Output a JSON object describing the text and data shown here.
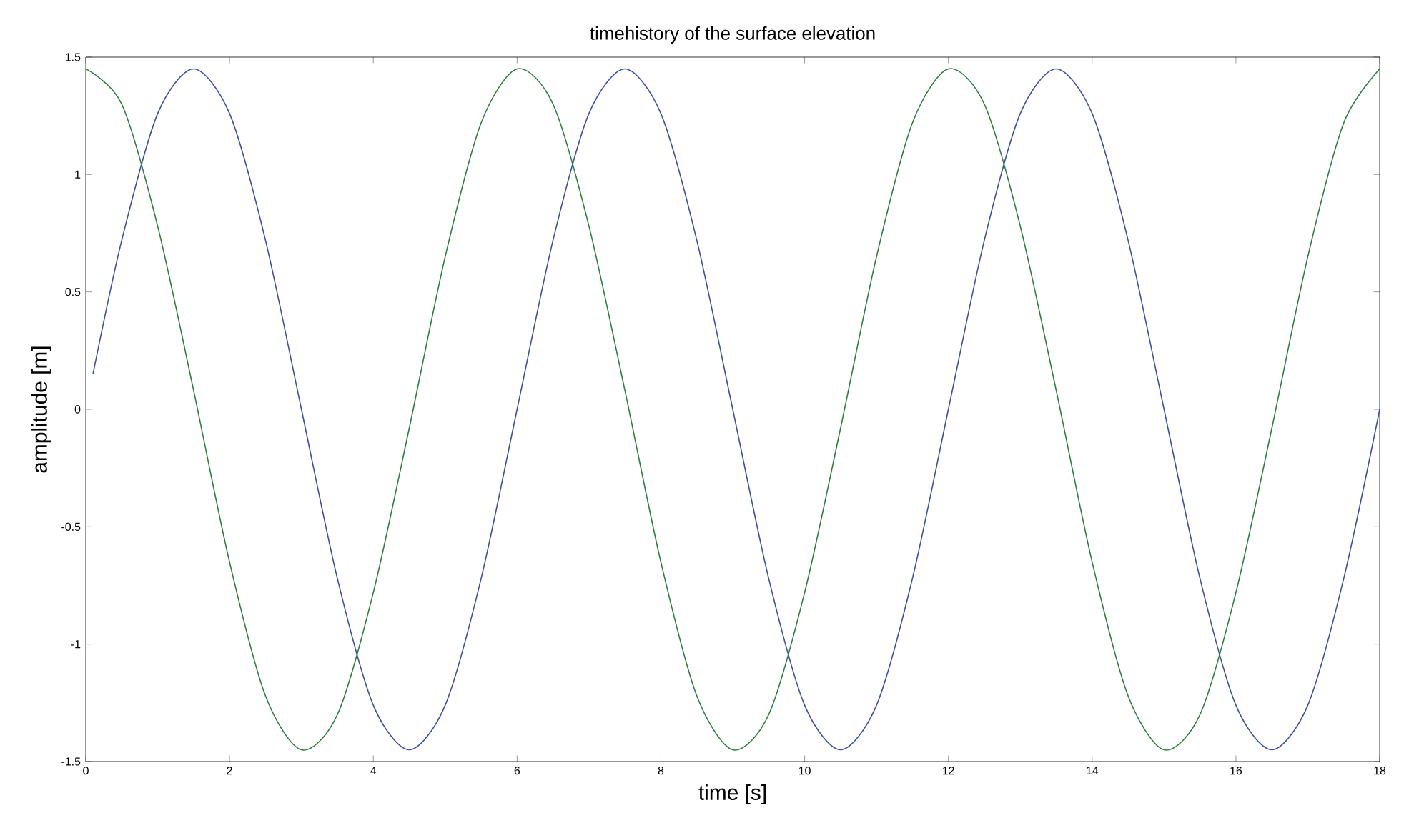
{
  "chart_data": {
    "type": "line",
    "title": "timehistory of the surface elevation",
    "xlabel": "time [s]",
    "ylabel": "amplitude [m]",
    "xlim": [
      0,
      18
    ],
    "ylim": [
      -1.5,
      1.5
    ],
    "xticks": [
      0,
      2,
      4,
      6,
      8,
      10,
      12,
      14,
      16,
      18
    ],
    "yticks": [
      -1.5,
      -1,
      -0.5,
      0,
      0.5,
      1,
      1.5
    ],
    "grid": false,
    "marker": "none",
    "line_style": "solid",
    "series": [
      {
        "color": "#3f4fa8",
        "x": [
          0.1,
          0.5,
          1,
          1.5,
          2,
          2.5,
          3,
          3.5,
          4,
          4.5,
          5,
          5.5,
          6,
          6.5,
          7,
          7.5,
          8,
          8.5,
          9,
          9.5,
          10,
          10.5,
          11,
          11.5,
          12,
          12.5,
          13,
          13.5,
          14,
          14.5,
          15,
          15.5,
          16,
          16.5,
          17,
          17.5,
          18
        ],
        "values": [
          0.15,
          0.72,
          1.26,
          1.45,
          1.26,
          0.72,
          0,
          -0.72,
          -1.26,
          -1.45,
          -1.26,
          -0.72,
          0,
          0.72,
          1.26,
          1.45,
          1.26,
          0.72,
          0,
          -0.72,
          -1.26,
          -1.45,
          -1.26,
          -0.72,
          0,
          0.72,
          1.26,
          1.45,
          1.26,
          0.72,
          0,
          -0.72,
          -1.26,
          -1.45,
          -1.26,
          -0.72,
          0
        ]
      },
      {
        "color": "#2a8040",
        "x": [
          0,
          0.5,
          1,
          1.5,
          2,
          2.5,
          3,
          3.5,
          4,
          4.5,
          5,
          5.5,
          6,
          6.5,
          7,
          7.5,
          8,
          8.5,
          9,
          9.5,
          10,
          10.5,
          11,
          11.5,
          12,
          12.5,
          13,
          13.5,
          14,
          14.5,
          15,
          15.5,
          16,
          16.5,
          17,
          17.5,
          18
        ],
        "values": [
          1.45,
          1.3,
          0.78,
          0.08,
          -0.65,
          -1.22,
          -1.45,
          -1.3,
          -0.78,
          -0.08,
          0.65,
          1.22,
          1.45,
          1.3,
          0.78,
          0.08,
          -0.65,
          -1.22,
          -1.45,
          -1.3,
          -0.78,
          -0.08,
          0.65,
          1.22,
          1.45,
          1.3,
          0.78,
          0.08,
          -0.65,
          -1.22,
          -1.45,
          -1.3,
          -0.78,
          -0.08,
          0.65,
          1.22,
          1.45
        ]
      }
    ]
  }
}
